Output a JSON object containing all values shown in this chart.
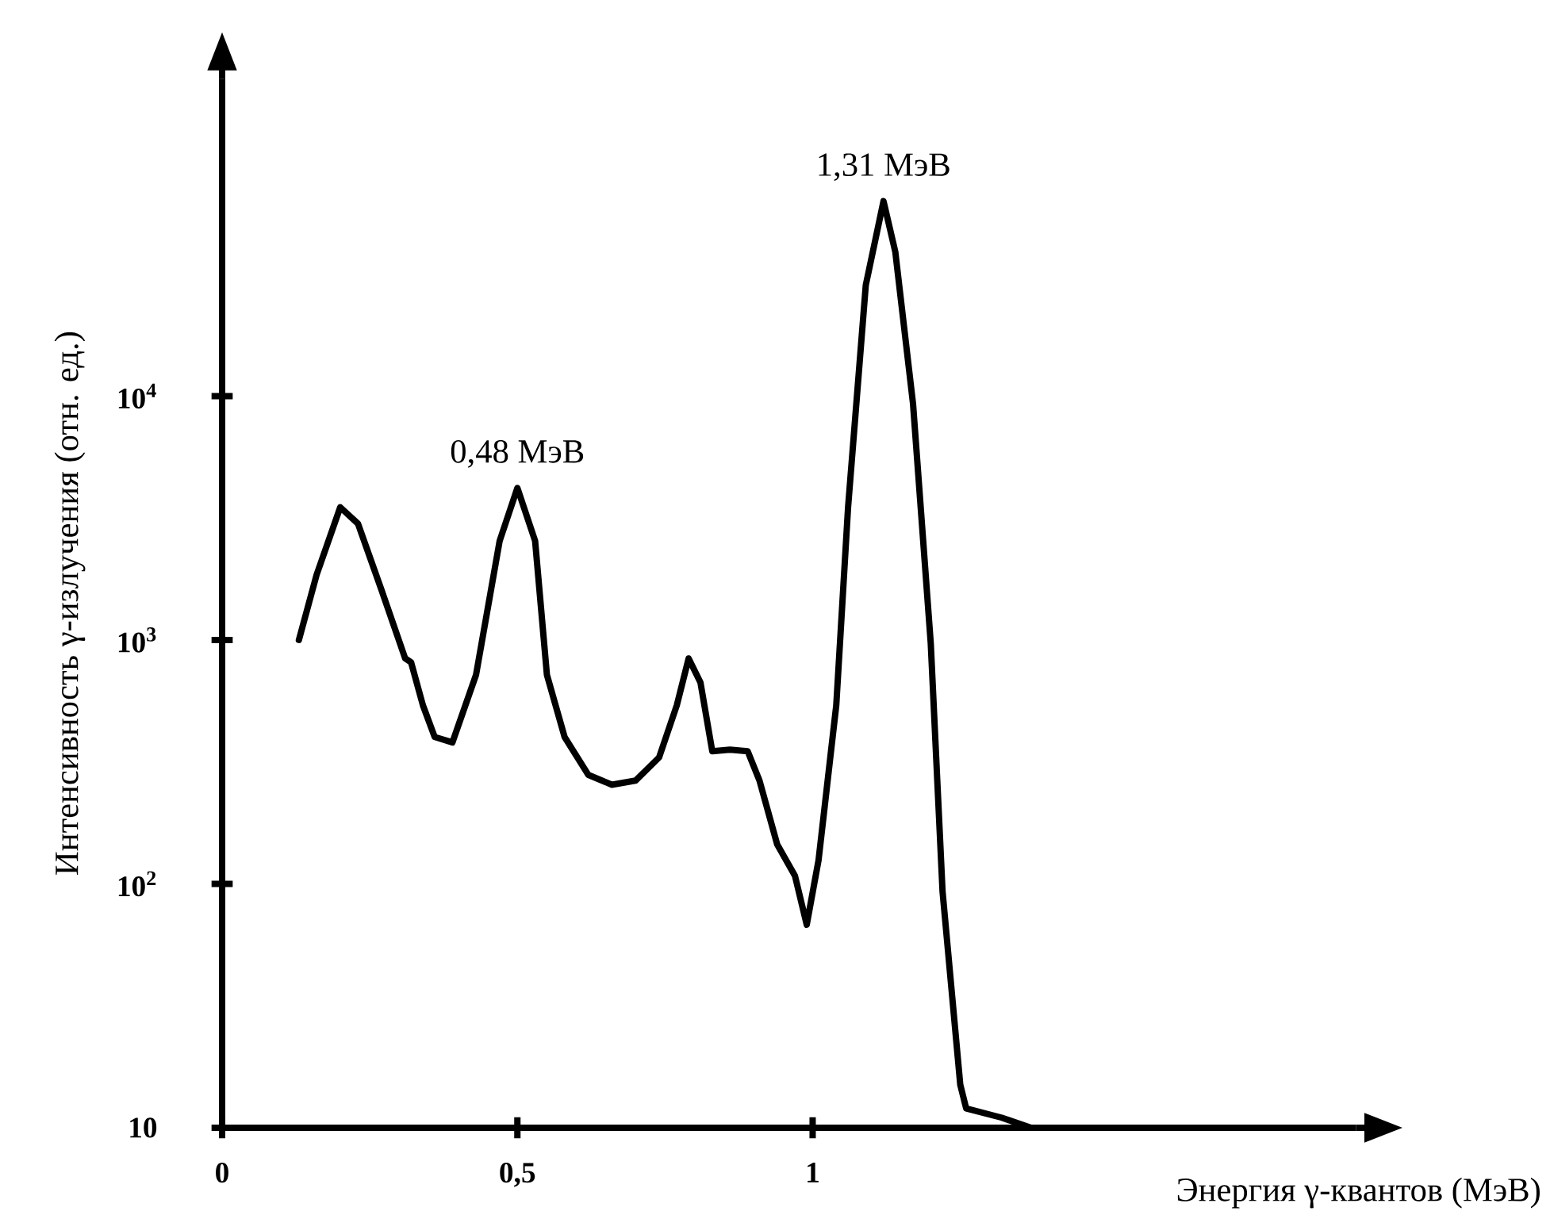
{
  "chart_data": {
    "type": "line",
    "xlabel": "Энергия γ-квантов (МэВ)",
    "ylabel": "Интенсивность γ-излучения (отн. ед.)",
    "log": "y",
    "grid": false,
    "marker": "none",
    "line_style": "solid",
    "xlim": [
      0,
      1.92
    ],
    "ylim": [
      10,
      200000
    ],
    "xticks": [
      0,
      {
        "value": 0.5,
        "label": "0,5"
      },
      1
    ],
    "yticks": [
      10,
      {
        "value": 100,
        "label": "10$^{2}$"
      },
      {
        "value": 1000,
        "label": "10$^{3}$"
      },
      {
        "value": 10000,
        "label": "10$^{4}$"
      }
    ],
    "annotations": [
      {
        "text": "0,48 МэВ",
        "x": 0.5,
        "y": 4200
      },
      {
        "text": "1,31 МэВ",
        "x": 1.12,
        "y": 63000
      }
    ],
    "series": [
      {
        "color": "#000000",
        "x": [
          0.13,
          0.16,
          0.2,
          0.23,
          0.27,
          0.31,
          0.32,
          0.34,
          0.36,
          0.39,
          0.43,
          0.47,
          0.5,
          0.53,
          0.55,
          0.58,
          0.62,
          0.66,
          0.7,
          0.74,
          0.77,
          0.79,
          0.81,
          0.83,
          0.86,
          0.89,
          0.91,
          0.94,
          0.97,
          0.99,
          1.01,
          1.04,
          1.06,
          1.09,
          1.12,
          1.14,
          1.17,
          1.2,
          1.22,
          1.25,
          1.26,
          1.32,
          1.37
        ],
        "values": [
          1000,
          1850,
          3500,
          3000,
          1600,
          840,
          810,
          540,
          400,
          380,
          720,
          2550,
          4200,
          2550,
          720,
          400,
          280,
          255,
          265,
          330,
          540,
          840,
          670,
          350,
          355,
          350,
          265,
          145,
          108,
          68,
          125,
          540,
          3500,
          28500,
          63000,
          39000,
          9300,
          970,
          93,
          15,
          12,
          11,
          10
        ]
      }
    ]
  }
}
